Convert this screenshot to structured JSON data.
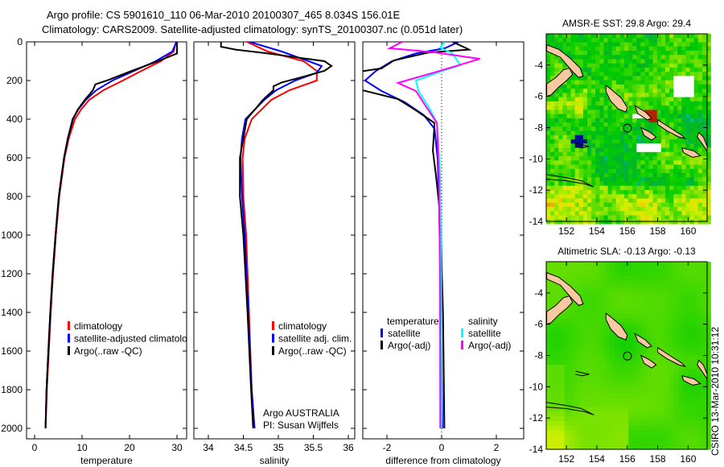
{
  "header": {
    "title_line1": "Argo profile: CS 5901610_110 06-Mar-2010 20100307_465 8.034S 156.01E",
    "title_line2": "Climatology: CARS2009. Satellite-adjusted climatology: synTS_20100307.nc (0.051d later)"
  },
  "footer_stamp": "CSIRO 13-Mar-2010 10:31:12",
  "credits": {
    "line1": "Argo AUSTRALIA",
    "line2": "PI: Susan Wijffels"
  },
  "profile_location": {
    "lat": -8.034,
    "lon": 156.01
  },
  "colors": {
    "climatology": "#ff0000",
    "satellite": "#0000ff",
    "argo": "#000000",
    "sal_satellite": "#00ffff",
    "sal_argo": "#ff00ff",
    "land": "#f8c8a0"
  },
  "chart_data": [
    {
      "type": "line",
      "id": "temperature",
      "xlabel": "temperature",
      "ylabel": "depth",
      "xlim": [
        -1.7,
        32
      ],
      "ylim": [
        2054,
        0
      ],
      "xticks": [
        "0",
        "10",
        "20",
        "30"
      ],
      "xtick_values": [
        0,
        10,
        20,
        30
      ],
      "yticks": [
        "0",
        "200",
        "400",
        "600",
        "800",
        "1000",
        "1200",
        "1400",
        "1600",
        "1800",
        "2000"
      ],
      "legend": [
        "climatology",
        "satellite-adjusted climatology",
        "Argo(..raw -QC)"
      ],
      "legend_placement": "bottom-center",
      "series": [
        {
          "name": "climatology",
          "color": "#ff0000",
          "points": [
            [
              29.8,
              0
            ],
            [
              29.3,
              50
            ],
            [
              26.6,
              100
            ],
            [
              22.5,
              150
            ],
            [
              18.6,
              200
            ],
            [
              14.5,
              250
            ],
            [
              11.5,
              300
            ],
            [
              9.8,
              350
            ],
            [
              8.5,
              400
            ],
            [
              7.2,
              500
            ],
            [
              6.3,
              600
            ],
            [
              5.2,
              800
            ],
            [
              4.5,
              1000
            ],
            [
              3.9,
              1200
            ],
            [
              3.4,
              1400
            ],
            [
              3.0,
              1600
            ],
            [
              2.6,
              1800
            ],
            [
              2.3,
              2000
            ]
          ]
        },
        {
          "name": "satellite-adjusted climatology",
          "color": "#0000ff",
          "points": [
            [
              29.9,
              0
            ],
            [
              29.0,
              50
            ],
            [
              25.5,
              100
            ],
            [
              21.0,
              150
            ],
            [
              16.4,
              200
            ],
            [
              13.0,
              250
            ],
            [
              10.8,
              300
            ],
            [
              9.2,
              350
            ],
            [
              8.0,
              400
            ],
            [
              7.0,
              500
            ],
            [
              6.2,
              600
            ],
            [
              5.1,
              800
            ],
            [
              4.4,
              1000
            ],
            [
              3.8,
              1200
            ],
            [
              3.3,
              1400
            ],
            [
              2.9,
              1600
            ],
            [
              2.5,
              1800
            ],
            [
              2.3,
              2000
            ]
          ]
        },
        {
          "name": "Argo(..raw -QC)",
          "color": "#000000",
          "points": [
            [
              30.0,
              0
            ],
            [
              30.0,
              60
            ],
            [
              26.0,
              100
            ],
            [
              20.5,
              150
            ],
            [
              15.2,
              200
            ],
            [
              12.8,
              220
            ],
            [
              12.3,
              250
            ],
            [
              10.6,
              300
            ],
            [
              9.1,
              350
            ],
            [
              8.1,
              400
            ],
            [
              7.0,
              500
            ],
            [
              6.2,
              600
            ],
            [
              5.1,
              800
            ],
            [
              4.4,
              1000
            ],
            [
              3.8,
              1200
            ],
            [
              3.3,
              1400
            ],
            [
              2.9,
              1600
            ],
            [
              2.5,
              1800
            ],
            [
              2.3,
              2000
            ]
          ]
        }
      ]
    },
    {
      "type": "line",
      "id": "salinity",
      "xlabel": "salinity",
      "ylabel": "depth",
      "xlim": [
        33.79,
        36.1
      ],
      "ylim": [
        2054,
        0
      ],
      "xticks": [
        "34",
        "34.5",
        "35",
        "35.5",
        "36"
      ],
      "xtick_values": [
        34,
        34.5,
        35,
        35.5,
        36
      ],
      "legend": [
        "climatology",
        "satellite adj. clim.",
        "Argo(..raw -QC)"
      ],
      "legend_placement": "bottom-right",
      "series": [
        {
          "name": "climatology",
          "color": "#ff0000",
          "points": [
            [
              34.55,
              0
            ],
            [
              34.85,
              50
            ],
            [
              35.36,
              100
            ],
            [
              35.55,
              150
            ],
            [
              35.55,
              200
            ],
            [
              35.16,
              250
            ],
            [
              34.9,
              300
            ],
            [
              34.62,
              400
            ],
            [
              34.52,
              500
            ],
            [
              34.49,
              600
            ],
            [
              34.5,
              800
            ],
            [
              34.54,
              1000
            ],
            [
              34.58,
              1400
            ],
            [
              34.62,
              1800
            ],
            [
              34.66,
              2000
            ]
          ]
        },
        {
          "name": "satellite adj. clim.",
          "color": "#0000ff",
          "points": [
            [
              34.59,
              0
            ],
            [
              35.05,
              50
            ],
            [
              35.43,
              100
            ],
            [
              35.62,
              125
            ],
            [
              35.55,
              160
            ],
            [
              35.24,
              200
            ],
            [
              34.97,
              250
            ],
            [
              34.8,
              300
            ],
            [
              34.53,
              400
            ],
            [
              34.48,
              500
            ],
            [
              34.46,
              600
            ],
            [
              34.48,
              800
            ],
            [
              34.52,
              1000
            ],
            [
              34.57,
              1400
            ],
            [
              34.62,
              1800
            ],
            [
              34.66,
              2000
            ]
          ]
        },
        {
          "name": "Argo(..raw -QC)",
          "color": "#000000",
          "points": [
            [
              34.18,
              0
            ],
            [
              34.18,
              25
            ],
            [
              34.39,
              40
            ],
            [
              34.85,
              60
            ],
            [
              35.66,
              100
            ],
            [
              35.76,
              125
            ],
            [
              35.66,
              150
            ],
            [
              35.36,
              180
            ],
            [
              35.05,
              210
            ],
            [
              34.93,
              230
            ],
            [
              34.93,
              250
            ],
            [
              34.78,
              300
            ],
            [
              34.55,
              400
            ],
            [
              34.5,
              500
            ],
            [
              34.45,
              600
            ],
            [
              34.45,
              800
            ],
            [
              34.5,
              1000
            ],
            [
              34.56,
              1400
            ],
            [
              34.61,
              1800
            ],
            [
              34.64,
              2000
            ]
          ]
        }
      ]
    },
    {
      "type": "line",
      "id": "difference",
      "xlabel": "difference from climatology",
      "ylabel": "depth",
      "xlim": [
        -2.88,
        3.03
      ],
      "ylim": [
        2054,
        0
      ],
      "xticks": [
        "-2",
        "0",
        "2"
      ],
      "xtick_values": [
        -2,
        0,
        2
      ],
      "legend_headers": [
        "temperature",
        "salinity"
      ],
      "legend": [
        "satellite",
        "Argo(-adj)",
        "satellite",
        "Argo(-adj)"
      ],
      "legend_placement": "bottom-center",
      "series": [
        {
          "name": "temperature satellite",
          "color": "#0000ff",
          "points": [
            [
              0.62,
              0
            ],
            [
              0.12,
              33
            ],
            [
              -0.94,
              60
            ],
            [
              -1.82,
              100
            ],
            [
              -2.4,
              150
            ],
            [
              -2.8,
              200
            ],
            [
              -2.2,
              254
            ],
            [
              -1.35,
              312
            ],
            [
              -0.65,
              379
            ],
            [
              -0.26,
              450
            ],
            [
              -0.15,
              600
            ],
            [
              -0.1,
              800
            ],
            [
              -0.05,
              1200
            ],
            [
              0.03,
              2000
            ]
          ]
        },
        {
          "name": "temperature Argo(-adj)",
          "color": "#000000",
          "points": [
            [
              0.4,
              0
            ],
            [
              0.9,
              33
            ],
            [
              1.0,
              40
            ],
            [
              -0.47,
              55
            ],
            [
              -1.74,
              96
            ],
            [
              -2.2,
              137
            ],
            [
              -3.0,
              154
            ],
            [
              -3.0,
              230
            ],
            [
              -2.9,
              250
            ],
            [
              -1.6,
              296
            ],
            [
              -0.94,
              354
            ],
            [
              -0.26,
              420
            ],
            [
              -0.32,
              562
            ],
            [
              -0.2,
              700
            ],
            [
              -0.05,
              900
            ],
            [
              0.05,
              1400
            ],
            [
              0.1,
              2000
            ]
          ]
        },
        {
          "name": "salinity satellite",
          "color": "#00ffff",
          "points": [
            [
              0.12,
              0
            ],
            [
              -0.06,
              30
            ],
            [
              0.4,
              60
            ],
            [
              0.68,
              121
            ],
            [
              0.03,
              150
            ],
            [
              -0.94,
              200
            ],
            [
              -0.85,
              254
            ],
            [
              -0.47,
              337
            ],
            [
              -0.17,
              420
            ],
            [
              -0.05,
              700
            ],
            [
              -0.02,
              1200
            ],
            [
              0.0,
              2000
            ]
          ]
        },
        {
          "name": "salinity Argo(-adj)",
          "color": "#ff00ff",
          "points": [
            [
              -1.44,
              0
            ],
            [
              -1.9,
              33
            ],
            [
              -0.26,
              54
            ],
            [
              1.4,
              88
            ],
            [
              -0.26,
              158
            ],
            [
              -1.6,
              212
            ],
            [
              -0.94,
              254
            ],
            [
              -0.56,
              337
            ],
            [
              -0.17,
              420
            ],
            [
              -0.1,
              700
            ],
            [
              -0.06,
              1200
            ],
            [
              -0.05,
              2000
            ]
          ]
        }
      ]
    },
    {
      "type": "heatmap",
      "id": "sst_map",
      "title": "AMSR-E SST: 29.8 Argo: 29.4",
      "xlim": [
        150.67,
        161.25
      ],
      "ylim": [
        -14,
        -2
      ],
      "xticks": [
        "152",
        "154",
        "156",
        "158",
        "160"
      ],
      "xtick_values": [
        152,
        154,
        156,
        158,
        160
      ],
      "yticks": [
        "-4",
        "-6",
        "-8",
        "-10",
        "-12",
        "-14"
      ],
      "ytick_values": [
        -4,
        -6,
        -8,
        -10,
        -12,
        -14
      ]
    },
    {
      "type": "heatmap",
      "id": "sla_map",
      "title": "Altimetric SLA: -0.13 Argo: -0.13",
      "xlim": [
        150.67,
        161.25
      ],
      "ylim": [
        -14,
        -2
      ],
      "xticks": [
        "152",
        "154",
        "156",
        "158",
        "160"
      ],
      "xtick_values": [
        152,
        154,
        156,
        158,
        160
      ],
      "yticks": [
        "-4",
        "-6",
        "-8",
        "-10",
        "-12",
        "-14"
      ],
      "ytick_values": [
        -4,
        -6,
        -8,
        -10,
        -12,
        -14
      ]
    }
  ]
}
